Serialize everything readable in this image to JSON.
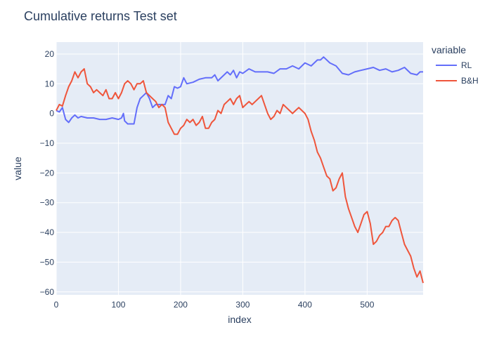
{
  "chart_data": {
    "type": "line",
    "title": "Cumulative returns Test set",
    "xlabel": "index",
    "ylabel": "value",
    "xlim": [
      0,
      590
    ],
    "ylim": [
      -61,
      24
    ],
    "x_ticks": [
      0,
      100,
      200,
      300,
      400,
      500
    ],
    "y_ticks": [
      -60,
      -50,
      -40,
      -30,
      -20,
      -10,
      0,
      10,
      20
    ],
    "grid": true,
    "legend": {
      "title": "variable",
      "placement": "top-right"
    },
    "series": [
      {
        "name": "RL",
        "color": "#636efa",
        "points": [
          [
            0,
            1
          ],
          [
            5,
            0.5
          ],
          [
            10,
            2
          ],
          [
            15,
            -2
          ],
          [
            20,
            -3
          ],
          [
            25,
            -1.5
          ],
          [
            30,
            -0.5
          ],
          [
            35,
            -1.5
          ],
          [
            40,
            -1
          ],
          [
            50,
            -1.5
          ],
          [
            60,
            -1.5
          ],
          [
            70,
            -2
          ],
          [
            80,
            -2
          ],
          [
            90,
            -1.5
          ],
          [
            100,
            -2
          ],
          [
            105,
            -1.5
          ],
          [
            108,
            0
          ],
          [
            110,
            -2.5
          ],
          [
            115,
            -3.5
          ],
          [
            120,
            -3.5
          ],
          [
            125,
            -3.5
          ],
          [
            130,
            2
          ],
          [
            135,
            5
          ],
          [
            140,
            6
          ],
          [
            145,
            7
          ],
          [
            150,
            5
          ],
          [
            155,
            2
          ],
          [
            160,
            3
          ],
          [
            170,
            3
          ],
          [
            175,
            3
          ],
          [
            180,
            6
          ],
          [
            185,
            5
          ],
          [
            190,
            9
          ],
          [
            195,
            8.5
          ],
          [
            200,
            9
          ],
          [
            205,
            12
          ],
          [
            210,
            10
          ],
          [
            220,
            10.5
          ],
          [
            230,
            11.5
          ],
          [
            240,
            12
          ],
          [
            250,
            12
          ],
          [
            255,
            13
          ],
          [
            260,
            11
          ],
          [
            270,
            13
          ],
          [
            275,
            14
          ],
          [
            280,
            13
          ],
          [
            285,
            14.5
          ],
          [
            290,
            12
          ],
          [
            295,
            14
          ],
          [
            300,
            13.5
          ],
          [
            310,
            15
          ],
          [
            320,
            14
          ],
          [
            330,
            14
          ],
          [
            340,
            14
          ],
          [
            350,
            13.5
          ],
          [
            360,
            15
          ],
          [
            370,
            15
          ],
          [
            380,
            16
          ],
          [
            390,
            15
          ],
          [
            400,
            17
          ],
          [
            410,
            16
          ],
          [
            420,
            18
          ],
          [
            425,
            18
          ],
          [
            430,
            19
          ],
          [
            440,
            17
          ],
          [
            450,
            16
          ],
          [
            460,
            13.5
          ],
          [
            470,
            13
          ],
          [
            480,
            14
          ],
          [
            490,
            14.5
          ],
          [
            500,
            15
          ],
          [
            510,
            15.5
          ],
          [
            520,
            14.5
          ],
          [
            530,
            15
          ],
          [
            540,
            14
          ],
          [
            550,
            14.5
          ],
          [
            560,
            15.5
          ],
          [
            570,
            13.5
          ],
          [
            580,
            13
          ],
          [
            585,
            14
          ],
          [
            590,
            14
          ]
        ]
      },
      {
        "name": "B&H",
        "color": "#ef553b",
        "points": [
          [
            0,
            1
          ],
          [
            5,
            3
          ],
          [
            10,
            2.5
          ],
          [
            15,
            6
          ],
          [
            20,
            9
          ],
          [
            25,
            11
          ],
          [
            30,
            14
          ],
          [
            35,
            12
          ],
          [
            40,
            14
          ],
          [
            45,
            15
          ],
          [
            50,
            10
          ],
          [
            55,
            9
          ],
          [
            60,
            7
          ],
          [
            65,
            8
          ],
          [
            70,
            7
          ],
          [
            75,
            6
          ],
          [
            80,
            8
          ],
          [
            85,
            5
          ],
          [
            90,
            5
          ],
          [
            95,
            7
          ],
          [
            100,
            5
          ],
          [
            105,
            7
          ],
          [
            110,
            10
          ],
          [
            115,
            11
          ],
          [
            120,
            10
          ],
          [
            125,
            8
          ],
          [
            130,
            10
          ],
          [
            135,
            10
          ],
          [
            140,
            11
          ],
          [
            145,
            7
          ],
          [
            150,
            6
          ],
          [
            155,
            5
          ],
          [
            160,
            4
          ],
          [
            165,
            2
          ],
          [
            170,
            3
          ],
          [
            175,
            2
          ],
          [
            180,
            -3
          ],
          [
            185,
            -5
          ],
          [
            190,
            -7
          ],
          [
            195,
            -7
          ],
          [
            200,
            -5
          ],
          [
            205,
            -4
          ],
          [
            210,
            -2
          ],
          [
            215,
            -3
          ],
          [
            220,
            -2
          ],
          [
            225,
            -4
          ],
          [
            230,
            -3
          ],
          [
            235,
            -1
          ],
          [
            240,
            -5
          ],
          [
            245,
            -5
          ],
          [
            250,
            -3
          ],
          [
            255,
            -2
          ],
          [
            260,
            1
          ],
          [
            265,
            0
          ],
          [
            270,
            3
          ],
          [
            275,
            4
          ],
          [
            280,
            5
          ],
          [
            285,
            3
          ],
          [
            290,
            5
          ],
          [
            295,
            6
          ],
          [
            300,
            2
          ],
          [
            305,
            3
          ],
          [
            310,
            4
          ],
          [
            315,
            3
          ],
          [
            320,
            4
          ],
          [
            325,
            5
          ],
          [
            330,
            6
          ],
          [
            335,
            3
          ],
          [
            340,
            0
          ],
          [
            345,
            -2
          ],
          [
            350,
            -1
          ],
          [
            355,
            1
          ],
          [
            360,
            0
          ],
          [
            365,
            3
          ],
          [
            370,
            2
          ],
          [
            375,
            1
          ],
          [
            380,
            0
          ],
          [
            385,
            1
          ],
          [
            390,
            2
          ],
          [
            395,
            1
          ],
          [
            400,
            0
          ],
          [
            405,
            -2
          ],
          [
            410,
            -6
          ],
          [
            415,
            -9
          ],
          [
            420,
            -13
          ],
          [
            425,
            -15
          ],
          [
            430,
            -18
          ],
          [
            435,
            -21
          ],
          [
            440,
            -22
          ],
          [
            445,
            -26
          ],
          [
            450,
            -25
          ],
          [
            455,
            -22
          ],
          [
            460,
            -20
          ],
          [
            465,
            -28
          ],
          [
            470,
            -32
          ],
          [
            475,
            -35
          ],
          [
            480,
            -38
          ],
          [
            485,
            -40
          ],
          [
            490,
            -37
          ],
          [
            495,
            -34
          ],
          [
            500,
            -33
          ],
          [
            505,
            -37
          ],
          [
            510,
            -44
          ],
          [
            515,
            -43
          ],
          [
            520,
            -41
          ],
          [
            525,
            -40
          ],
          [
            530,
            -38
          ],
          [
            535,
            -38
          ],
          [
            540,
            -36
          ],
          [
            545,
            -35
          ],
          [
            550,
            -36
          ],
          [
            555,
            -40
          ],
          [
            560,
            -44
          ],
          [
            565,
            -46
          ],
          [
            570,
            -48
          ],
          [
            575,
            -52
          ],
          [
            580,
            -55
          ],
          [
            585,
            -53
          ],
          [
            590,
            -57
          ]
        ]
      }
    ]
  }
}
